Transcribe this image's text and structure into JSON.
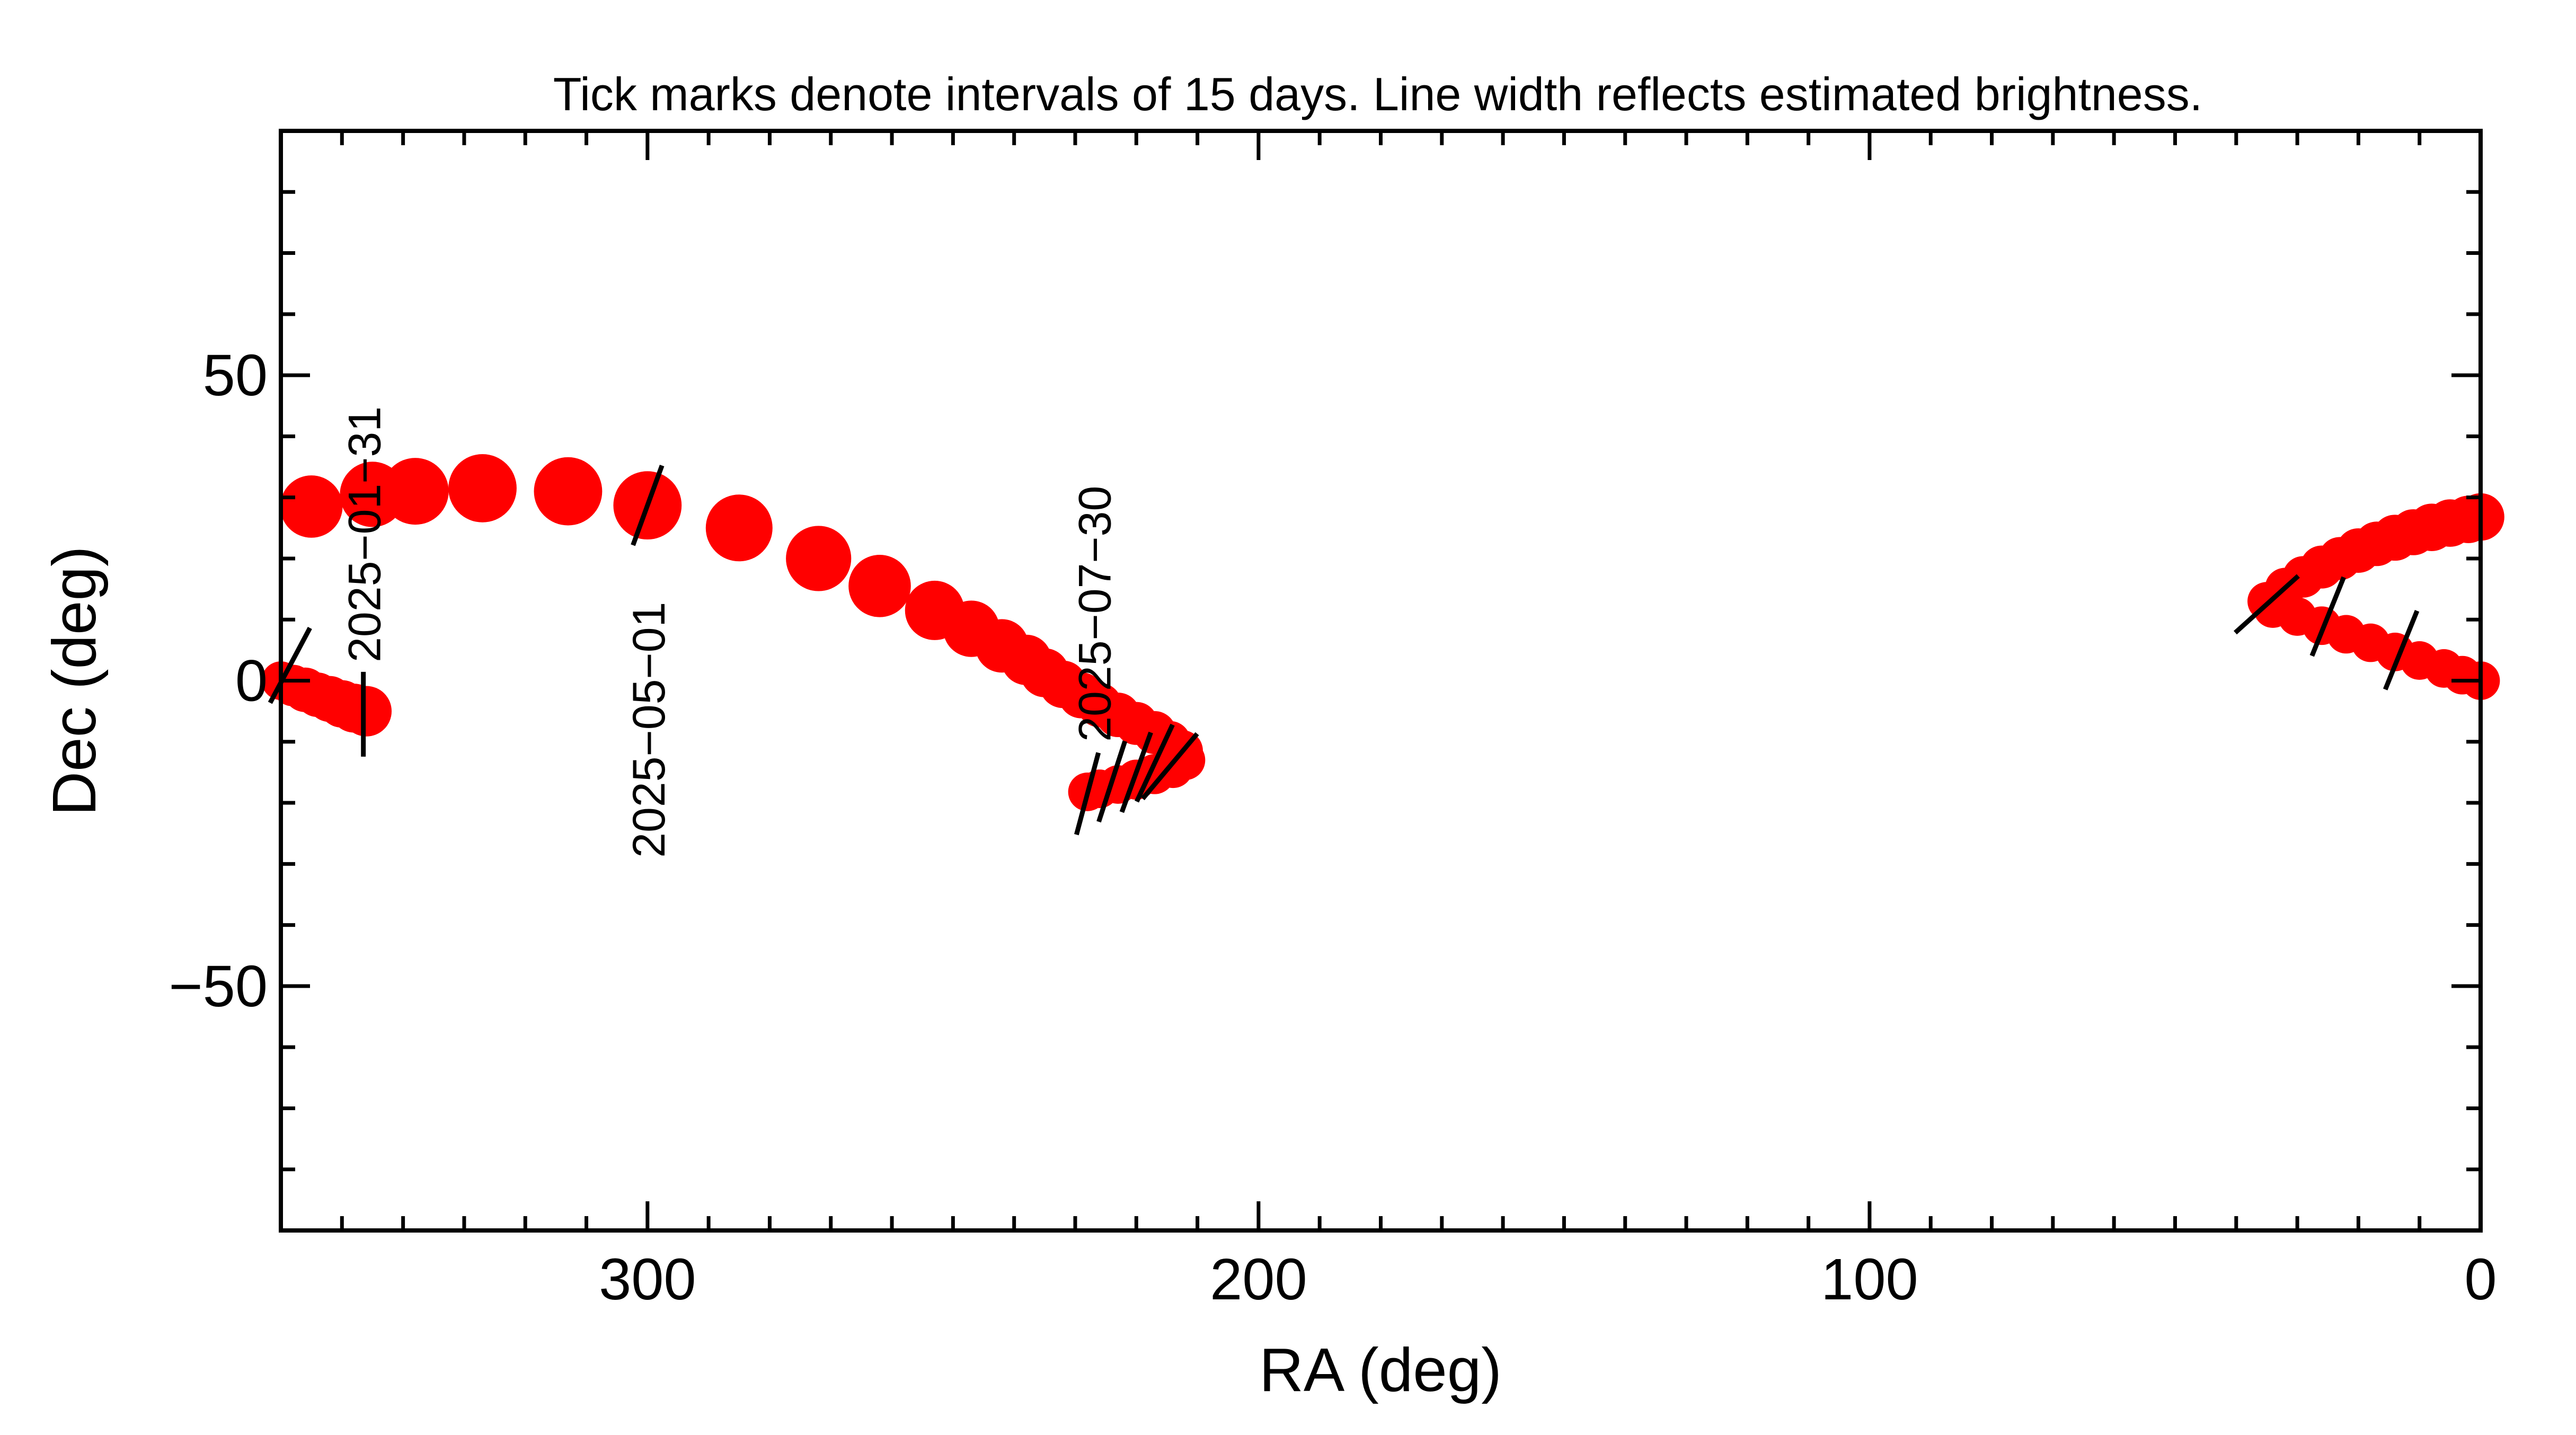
{
  "chart_data": {
    "type": "scatter",
    "title": "Tick marks denote intervals of 15 days.  Line width reflects estimated brightness.",
    "xlabel": "RA (deg)",
    "ylabel": "Dec (deg)",
    "xlim": [
      360,
      0
    ],
    "ylim": [
      -90,
      90
    ],
    "x_major_ticks": [
      300,
      200,
      100,
      0
    ],
    "x_tick_labels": [
      "300",
      "200",
      "100",
      "0"
    ],
    "x_minor_step": 10,
    "y_major_ticks": [
      50,
      0,
      -50
    ],
    "y_tick_labels": [
      "50",
      "0",
      "−50"
    ],
    "y_minor_step": 10,
    "series": [
      {
        "name": "path",
        "color": "#ff0000",
        "points": [
          {
            "ra": 360,
            "dec": 0,
            "size": 2.6
          },
          {
            "ra": 358,
            "dec": -0.8,
            "size": 2.8
          },
          {
            "ra": 356,
            "dec": -1.5,
            "size": 3.0
          },
          {
            "ra": 354,
            "dec": -2.3,
            "size": 3.0
          },
          {
            "ra": 352,
            "dec": -3.0,
            "size": 3.1
          },
          {
            "ra": 350,
            "dec": -3.8,
            "size": 3.2
          },
          {
            "ra": 348,
            "dec": -4.5,
            "size": 3.3
          },
          {
            "ra": 346,
            "dec": -5.0,
            "size": 3.4
          },
          {
            "ra": 355,
            "dec": 28.5,
            "size": 4.2
          },
          {
            "ra": 345,
            "dec": 30.5,
            "size": 4.4
          },
          {
            "ra": 338,
            "dec": 31.0,
            "size": 4.5
          },
          {
            "ra": 327,
            "dec": 31.5,
            "size": 4.6
          },
          {
            "ra": 313,
            "dec": 31.0,
            "size": 4.6
          },
          {
            "ra": 300,
            "dec": 28.7,
            "size": 4.6
          },
          {
            "ra": 285,
            "dec": 25.0,
            "size": 4.5
          },
          {
            "ra": 272,
            "dec": 20.0,
            "size": 4.4
          },
          {
            "ra": 262,
            "dec": 15.5,
            "size": 4.2
          },
          {
            "ra": 253,
            "dec": 11.5,
            "size": 4.0
          },
          {
            "ra": 247,
            "dec": 8.5,
            "size": 3.8
          },
          {
            "ra": 242,
            "dec": 5.7,
            "size": 3.6
          },
          {
            "ra": 238,
            "dec": 3.4,
            "size": 3.4
          },
          {
            "ra": 235,
            "dec": 1.3,
            "size": 3.3
          },
          {
            "ra": 232,
            "dec": -0.6,
            "size": 3.2
          },
          {
            "ra": 229,
            "dec": -2.4,
            "size": 3.1
          },
          {
            "ra": 226,
            "dec": -4.0,
            "size": 3.0
          },
          {
            "ra": 223,
            "dec": -5.6,
            "size": 3.0
          },
          {
            "ra": 220,
            "dec": -7.0,
            "size": 2.9
          },
          {
            "ra": 217,
            "dec": -8.5,
            "size": 2.9
          },
          {
            "ra": 214.5,
            "dec": -10.0,
            "size": 2.8
          },
          {
            "ra": 212.5,
            "dec": -11.5,
            "size": 2.8
          },
          {
            "ra": 212,
            "dec": -13.0,
            "size": 2.7
          },
          {
            "ra": 214,
            "dec": -14.3,
            "size": 2.7
          },
          {
            "ra": 217,
            "dec": -15.3,
            "size": 2.7
          },
          {
            "ra": 220,
            "dec": -16.2,
            "size": 2.7
          },
          {
            "ra": 223,
            "dec": -17.0,
            "size": 2.6
          },
          {
            "ra": 226,
            "dec": -17.7,
            "size": 2.6
          },
          {
            "ra": 228,
            "dec": -18.2,
            "size": 2.6
          },
          {
            "ra": 35,
            "dec": 13.0,
            "size": 2.6
          },
          {
            "ra": 32,
            "dec": 15.2,
            "size": 2.7
          },
          {
            "ra": 29,
            "dec": 17.0,
            "size": 2.8
          },
          {
            "ra": 26,
            "dec": 18.6,
            "size": 2.9
          },
          {
            "ra": 23,
            "dec": 20.0,
            "size": 2.9
          },
          {
            "ra": 20,
            "dec": 21.3,
            "size": 3.0
          },
          {
            "ra": 17,
            "dec": 22.4,
            "size": 3.0
          },
          {
            "ra": 14,
            "dec": 23.4,
            "size": 3.1
          },
          {
            "ra": 11,
            "dec": 24.3,
            "size": 3.1
          },
          {
            "ra": 8,
            "dec": 25.1,
            "size": 3.2
          },
          {
            "ra": 5,
            "dec": 25.8,
            "size": 3.2
          },
          {
            "ra": 2,
            "dec": 26.4,
            "size": 3.2
          },
          {
            "ra": 0,
            "dec": 26.8,
            "size": 3.2
          },
          {
            "ra": 34,
            "dec": 11.8,
            "size": 2.6
          },
          {
            "ra": 30,
            "dec": 10.5,
            "size": 2.6
          },
          {
            "ra": 26,
            "dec": 9.0,
            "size": 2.6
          },
          {
            "ra": 22,
            "dec": 7.6,
            "size": 2.6
          },
          {
            "ra": 18,
            "dec": 6.2,
            "size": 2.6
          },
          {
            "ra": 14,
            "dec": 4.7,
            "size": 2.6
          },
          {
            "ra": 10,
            "dec": 3.3,
            "size": 2.6
          },
          {
            "ra": 6,
            "dec": 2.0,
            "size": 2.6
          },
          {
            "ra": 3,
            "dec": 0.9,
            "size": 2.6
          },
          {
            "ra": 0,
            "dec": 0,
            "size": 2.6
          }
        ]
      }
    ],
    "interval_ticks": [
      {
        "ra": 358.5,
        "dec": 2.5,
        "angle": 62
      },
      {
        "ra": 346.5,
        "dec": -5.5,
        "angle": 90
      },
      {
        "ra": 300,
        "dec": 28.7,
        "angle": 70
      },
      {
        "ra": 228,
        "dec": -18.5,
        "angle": 75
      },
      {
        "ra": 224,
        "dec": -16.5,
        "angle": 72
      },
      {
        "ra": 220,
        "dec": -15.0,
        "angle": 70
      },
      {
        "ra": 217,
        "dec": -13.5,
        "angle": 65
      },
      {
        "ra": 214.5,
        "dec": -14.0,
        "angle": 50
      },
      {
        "ra": 35,
        "dec": 12.5,
        "angle": 42
      },
      {
        "ra": 25,
        "dec": 10.5,
        "angle": 68
      },
      {
        "ra": 13,
        "dec": 5.0,
        "angle": 68
      }
    ],
    "annotations": [
      {
        "text": "2025−01−31",
        "ra": 346.5,
        "dec": 3
      },
      {
        "text": "2025−05−01",
        "ra": 300,
        "dec": -29
      },
      {
        "text": "2025−07−30",
        "ra": 227,
        "dec": -10
      }
    ]
  }
}
